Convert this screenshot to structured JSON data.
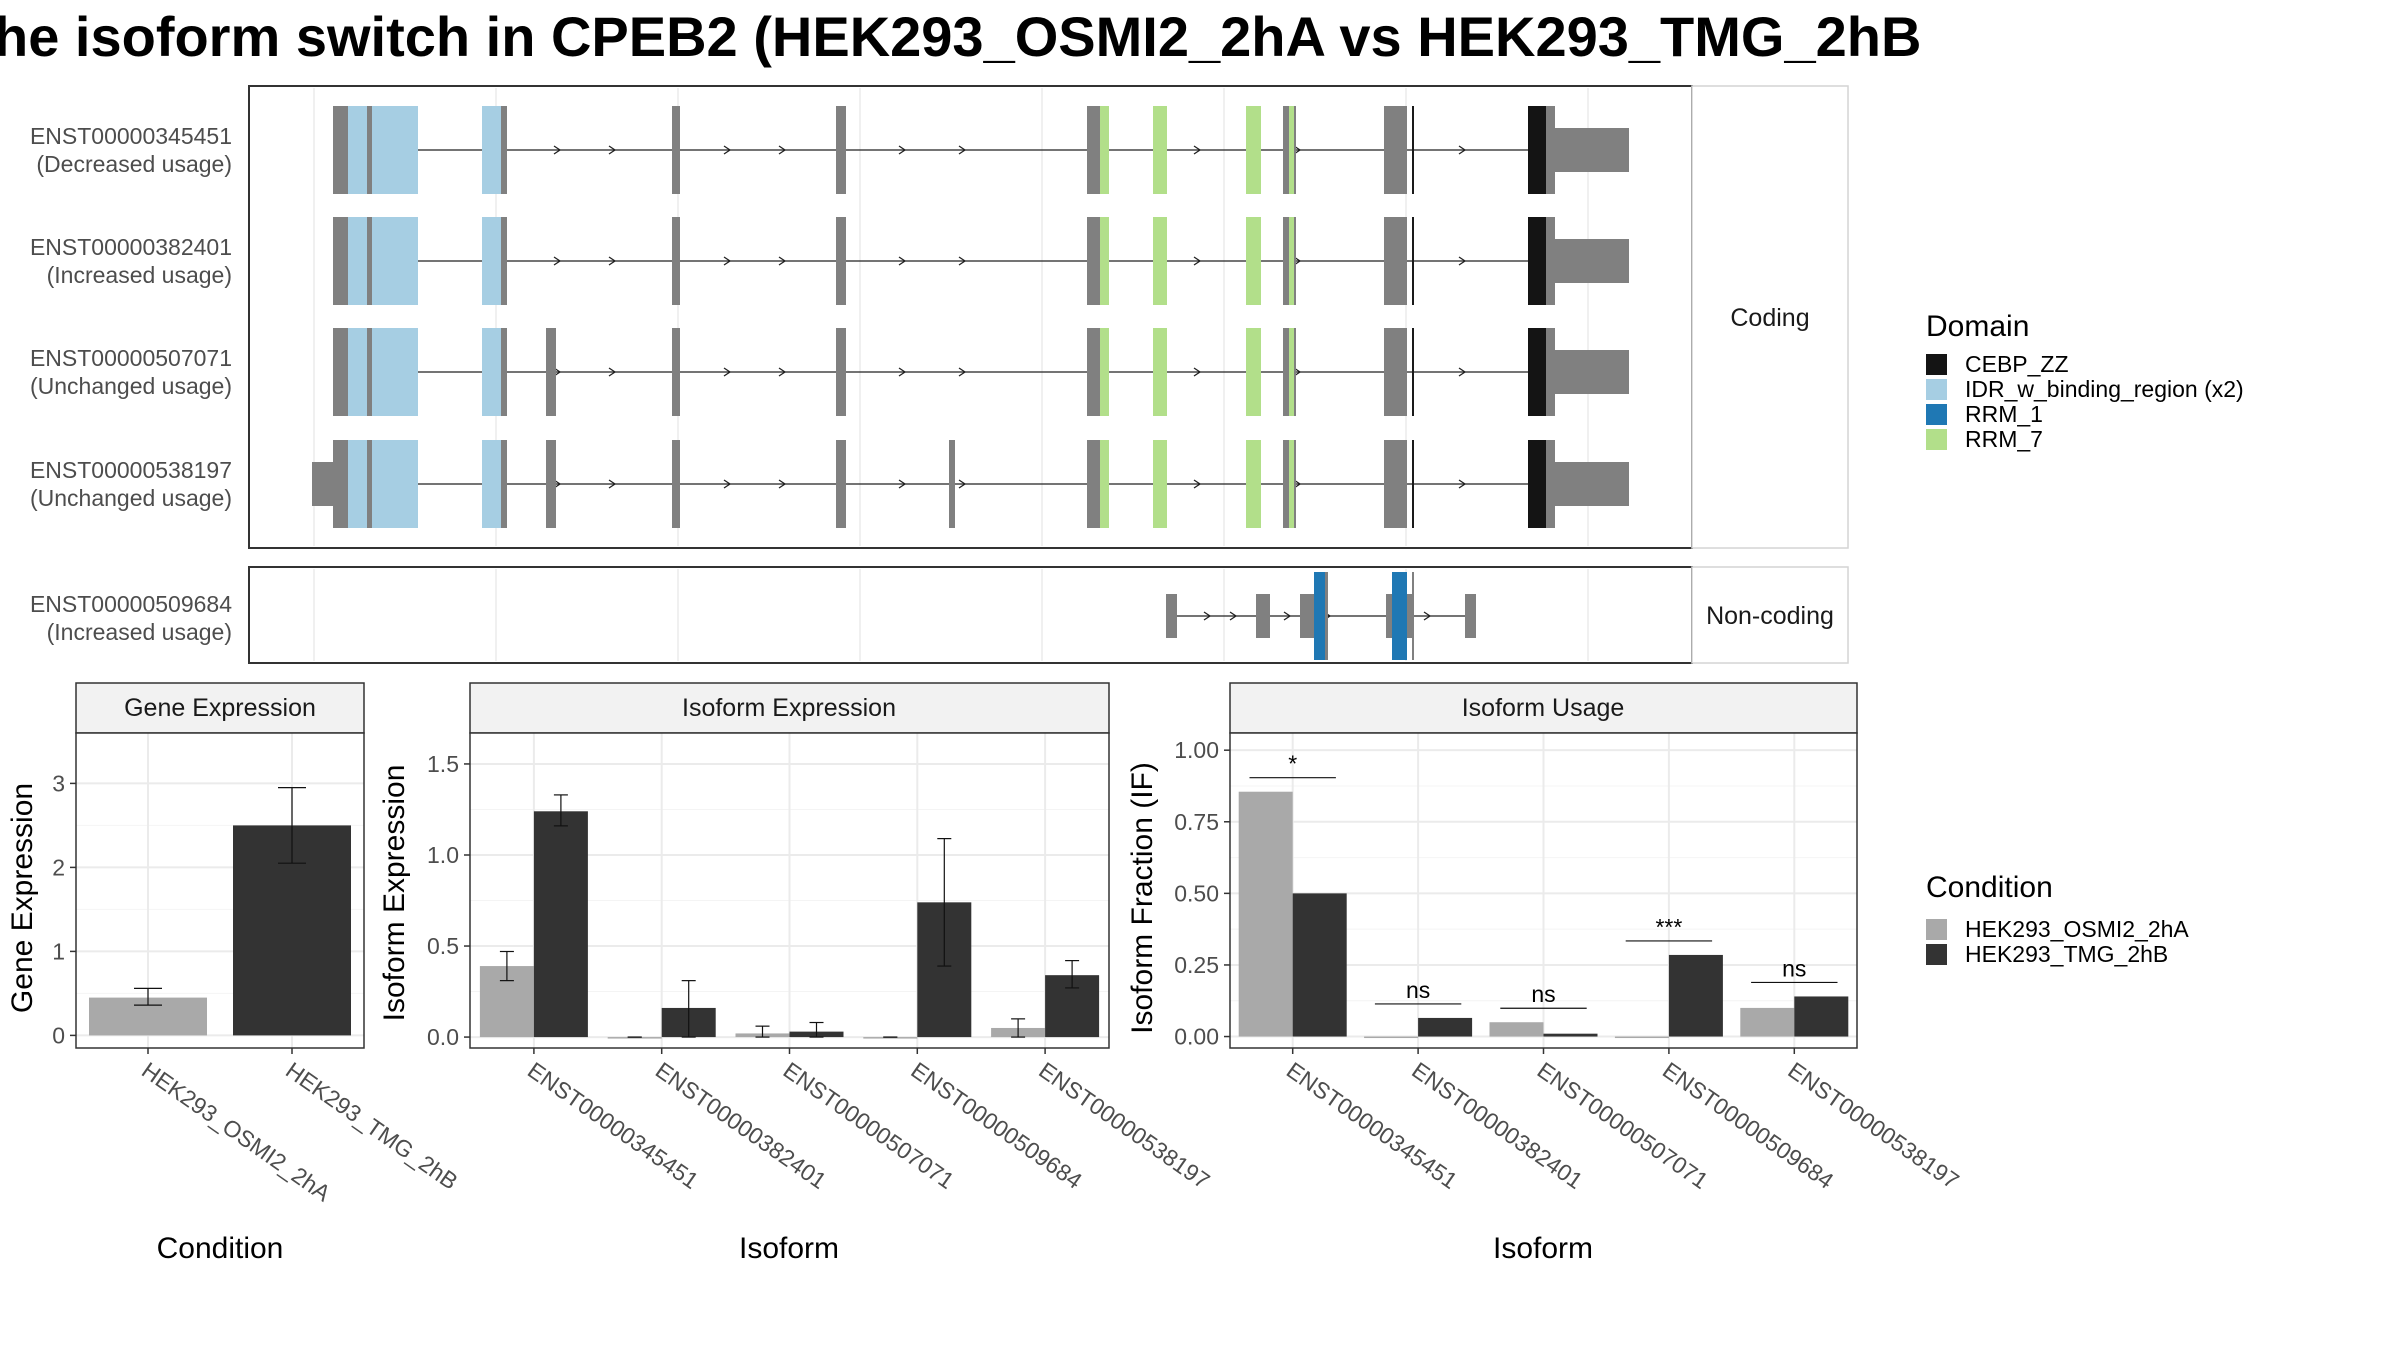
{
  "title": "he isoform switch in CPEB2 (HEK293_OSMI2_2hA vs HEK293_TMG_2hB",
  "colors": {
    "CEBP_ZZ": "#141414",
    "IDR_w_binding_region": "#a6cee3",
    "RRM_1": "#1f78b4",
    "RRM_7": "#b2df8a",
    "exon": "#808080",
    "cond_A": "#a9a9a9",
    "cond_B": "#333333"
  },
  "structure": {
    "facets": [
      "Coding",
      "Non-coding"
    ],
    "transcripts": [
      {
        "id": "ENST00000345451",
        "usage": "(Decreased usage)",
        "facet": "Coding"
      },
      {
        "id": "ENST00000382401",
        "usage": "(Increased usage)",
        "facet": "Coding"
      },
      {
        "id": "ENST00000507071",
        "usage": "(Unchanged usage)",
        "facet": "Coding"
      },
      {
        "id": "ENST00000538197",
        "usage": "(Unchanged usage)",
        "facet": "Coding"
      },
      {
        "id": "ENST00000509684",
        "usage": "(Increased usage)",
        "facet": "Non-coding"
      }
    ],
    "legend_title": "Domain",
    "domains": [
      {
        "name": "CEBP_ZZ",
        "key": "CEBP_ZZ"
      },
      {
        "name": "IDR_w_binding_region (x2)",
        "key": "IDR_w_binding_region"
      },
      {
        "name": "RRM_1",
        "key": "RRM_1"
      },
      {
        "name": "RRM_7",
        "key": "RRM_7"
      }
    ]
  },
  "condition_legend": {
    "title": "Condition",
    "entries": [
      {
        "name": "HEK293_OSMI2_2hA",
        "key": "cond_A"
      },
      {
        "name": "HEK293_TMG_2hB",
        "key": "cond_B"
      }
    ]
  },
  "chart_data": [
    {
      "type": "bar",
      "panel": "Gene Expression",
      "title": "Gene Expression",
      "xlabel": "Condition",
      "ylabel": "Gene Expression",
      "categories": [
        "HEK293_OSMI2_2hA",
        "HEK293_TMG_2hB"
      ],
      "values": [
        0.45,
        2.5
      ],
      "errors": [
        [
          0.36,
          0.56
        ],
        [
          2.05,
          2.95
        ]
      ],
      "yticks": [
        "0",
        "1",
        "2",
        "3"
      ],
      "ylim": [
        -0.15,
        3.6
      ]
    },
    {
      "type": "bar",
      "panel": "Isoform Expression",
      "title": "Isoform Expression",
      "xlabel": "Isoform",
      "ylabel": "Isoform Expression",
      "categories": [
        "ENST00000345451",
        "ENST00000382401",
        "ENST00000507071",
        "ENST00000509684",
        "ENST00000538197"
      ],
      "series": [
        {
          "name": "HEK293_OSMI2_2hA",
          "values": [
            0.39,
            0.0,
            0.02,
            0.0,
            0.05
          ],
          "errors": [
            [
              0.31,
              0.47
            ],
            [
              0.0,
              0.0
            ],
            [
              0.0,
              0.06
            ],
            [
              0.0,
              0.0
            ],
            [
              0.0,
              0.1
            ]
          ]
        },
        {
          "name": "HEK293_TMG_2hB",
          "values": [
            1.24,
            0.16,
            0.03,
            0.74,
            0.34
          ],
          "errors": [
            [
              1.16,
              1.33
            ],
            [
              0.0,
              0.31
            ],
            [
              0.0,
              0.08
            ],
            [
              0.39,
              1.09
            ],
            [
              0.27,
              0.42
            ]
          ]
        }
      ],
      "yticks": [
        "0.0",
        "0.5",
        "1.0",
        "1.5"
      ],
      "ylim": [
        -0.06,
        1.67
      ]
    },
    {
      "type": "bar",
      "panel": "Isoform Usage",
      "title": "Isoform Usage",
      "xlabel": "Isoform",
      "ylabel": "Isoform Fraction (IF)",
      "categories": [
        "ENST00000345451",
        "ENST00000382401",
        "ENST00000507071",
        "ENST00000509684",
        "ENST00000538197"
      ],
      "series": [
        {
          "name": "HEK293_OSMI2_2hA",
          "values": [
            0.855,
            0.0,
            0.05,
            0.0,
            0.1
          ]
        },
        {
          "name": "HEK293_TMG_2hB",
          "values": [
            0.5,
            0.065,
            0.01,
            0.285,
            0.14
          ]
        }
      ],
      "significance": [
        "*",
        "ns",
        "ns",
        "***",
        "ns"
      ],
      "yticks": [
        "0.00",
        "0.25",
        "0.50",
        "0.75",
        "1.00"
      ],
      "ylim": [
        -0.04,
        1.06
      ]
    }
  ]
}
